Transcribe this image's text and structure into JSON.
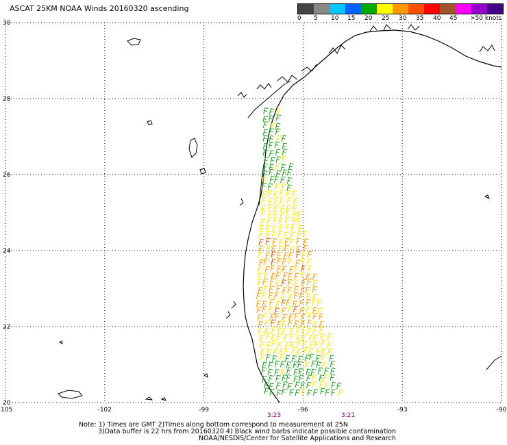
{
  "title": "ASCAT 25KM NOAA Winds 20160320 ascending",
  "colorbar": {
    "colors": [
      "#444444",
      "#888888",
      "#00c8ff",
      "#0064ff",
      "#00aa00",
      "#ffff00",
      "#ff9900",
      "#ff5000",
      "#ff0000",
      "#a0522d",
      "#ff00ff",
      "#9900cc",
      "#440088"
    ],
    "tick_labels": [
      "0",
      "5",
      "10",
      "15",
      "20",
      "25",
      "30",
      "35",
      "40",
      "45",
      ">50 knots"
    ]
  },
  "axes": {
    "lon_labels": [
      "-105",
      "-102",
      "-99",
      "-96",
      "-93",
      "-90"
    ],
    "lat_labels": [
      "30",
      "28",
      "26",
      "24",
      "22",
      "20"
    ]
  },
  "pass_times": [
    "3:23",
    "3:21"
  ],
  "notes": {
    "line1": "Note: 1) Times are GMT 2)Times along bottom correspond to measurement at 25N",
    "line2": "3)Data buffer is 22 hrs from 20160320 4) Black wind barbs indicate possible contamination",
    "line3": "NOAA/NESDIS/Center for Satellite Applications and Research"
  },
  "wind_swath": {
    "lat_range": [
      20,
      27.6
    ],
    "zones": [
      {
        "lat_from": 25.5,
        "lat_to": 27.6,
        "color": "green",
        "speed_knots": 15
      },
      {
        "lat_from": 24.2,
        "lat_to": 25.5,
        "color": "yellow",
        "speed_knots": 20
      },
      {
        "lat_from": 22.0,
        "lat_to": 24.2,
        "color": "orange",
        "speed_knots": 25
      },
      {
        "lat_from": 21.2,
        "lat_to": 22.0,
        "color": "yellow",
        "speed_knots": 20
      },
      {
        "lat_from": 20.0,
        "lat_to": 21.2,
        "color": "green",
        "speed_knots": 15
      }
    ]
  }
}
